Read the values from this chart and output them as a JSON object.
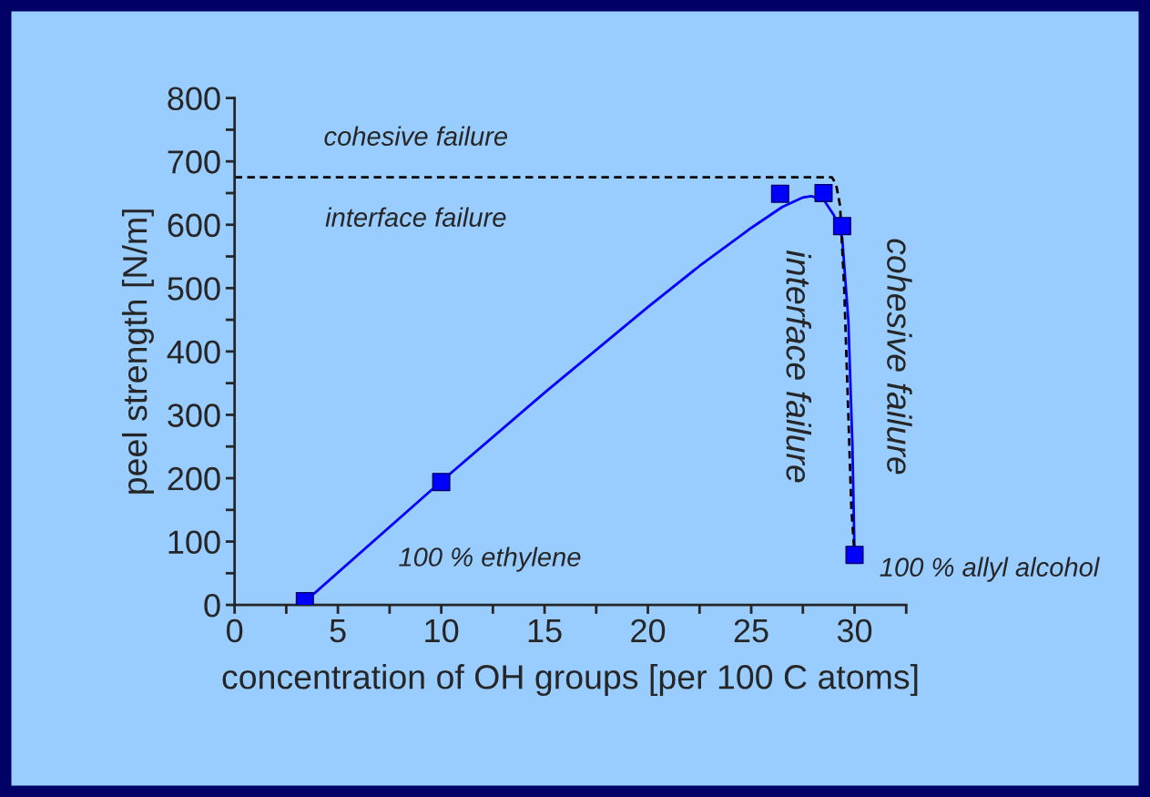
{
  "chart_data": {
    "type": "scatter",
    "xlabel": "concentration of OH groups [per 100 C atoms]",
    "ylabel": "peel strength [N/m]",
    "xlim": [
      0,
      32.5
    ],
    "ylim": [
      0,
      800
    ],
    "xticks": [
      0,
      {
        "value": 2.5,
        "label": null
      },
      5,
      {
        "value": 7.5,
        "label": null
      },
      10,
      {
        "value": 12.5,
        "label": null
      },
      15,
      {
        "value": 17.5,
        "label": null
      },
      20,
      {
        "value": 22.5,
        "label": null
      },
      25,
      {
        "value": 27.5,
        "label": null
      },
      30,
      {
        "value": 32.5,
        "label": null
      }
    ],
    "yticks": [
      0,
      {
        "value": 50,
        "label": null
      },
      100,
      {
        "value": 150,
        "label": null
      },
      200,
      {
        "value": 250,
        "label": null
      },
      300,
      {
        "value": 350,
        "label": null
      },
      400,
      {
        "value": 450,
        "label": null
      },
      500,
      {
        "value": 550,
        "label": null
      },
      600,
      {
        "value": 650,
        "label": null
      },
      700,
      {
        "value": 750,
        "label": null
      },
      800
    ],
    "grid": false,
    "series": [
      {
        "type": "line",
        "color": "#0000ff",
        "line_style": "solid",
        "marker": "none",
        "x": [
          3.4,
          10,
          15,
          20,
          22.5,
          25,
          26.5,
          27.5,
          27.9,
          28.5,
          29,
          29.4,
          29.7,
          29.9,
          30
        ],
        "values": [
          5,
          195,
          335,
          470,
          535,
          595,
          628,
          643,
          645,
          640,
          615,
          580,
          450,
          250,
          80
        ]
      },
      {
        "type": "line",
        "color": "#000000",
        "line_style": "dashed",
        "marker": "none",
        "x": [
          0,
          28.9,
          29.1,
          29.3,
          29.5,
          29.7,
          29.85,
          30
        ],
        "values": [
          675,
          675,
          665,
          630,
          500,
          300,
          150,
          80
        ]
      },
      {
        "color": "#0000ff",
        "marker": "square",
        "x": [
          3.4,
          10,
          26.4,
          28.5,
          29.4,
          30
        ],
        "values": [
          6,
          194,
          649,
          650,
          598,
          79
        ]
      }
    ],
    "annotations": [
      "cohesive failure",
      "interface failure",
      "interface failure",
      "cohesive failure",
      "100 % ethylene",
      "100 % allyl alcohol"
    ]
  }
}
